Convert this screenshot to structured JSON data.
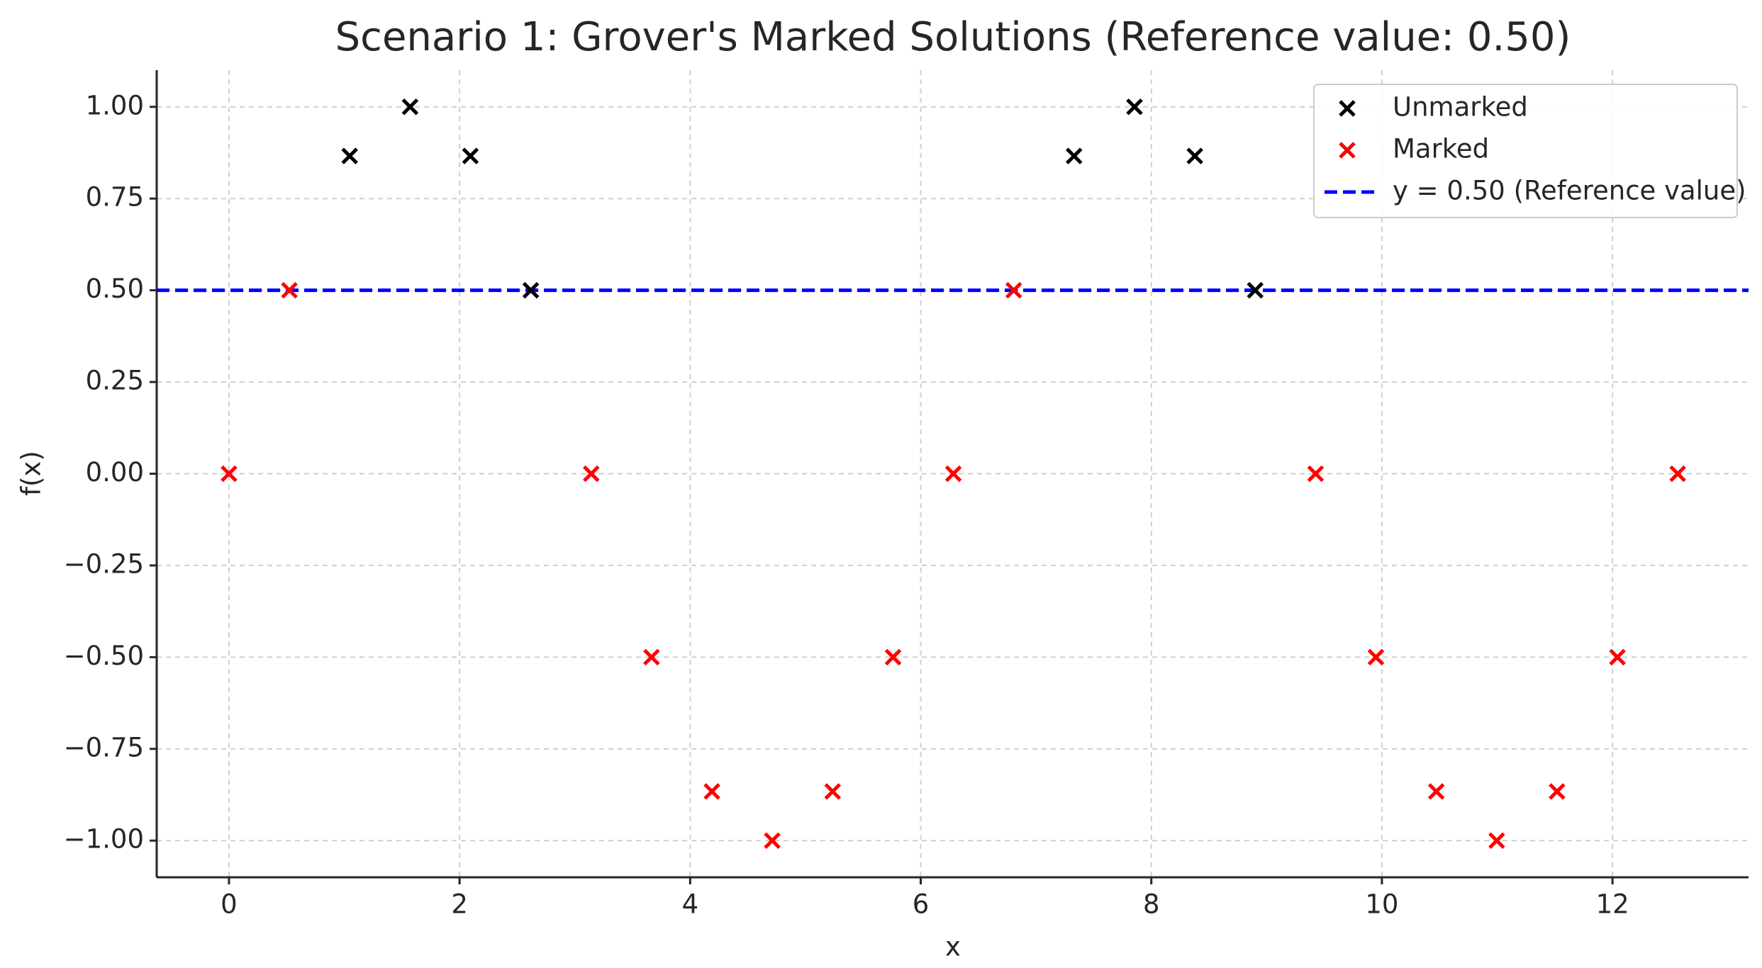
{
  "chart_data": {
    "type": "scatter",
    "title": "Scenario 1: Grover's Marked Solutions (Reference value: 0.50)",
    "x_label": "x",
    "y_label": "f(x)",
    "xlim": [
      -0.627,
      13.18
    ],
    "ylim": [
      -1.1,
      1.1
    ],
    "xticks": [
      0,
      2,
      4,
      6,
      8,
      10,
      12
    ],
    "yticks": [
      {
        "value": -1,
        "label": "−1.00"
      },
      {
        "value": -0.75,
        "label": "−0.75"
      },
      {
        "value": -0.5,
        "label": "−0.50"
      },
      {
        "value": -0.25,
        "label": "−0.25"
      },
      {
        "value": 0,
        "label": "0.00"
      },
      {
        "value": 0.25,
        "label": "0.25"
      },
      {
        "value": 0.5,
        "label": "0.50"
      },
      {
        "value": 0.75,
        "label": "0.75"
      },
      {
        "value": 1,
        "label": "1.00"
      }
    ],
    "grid": true,
    "legend": "upper right",
    "series": [
      {
        "name": "Unmarked",
        "color": "#000000",
        "x": [
          1.047,
          1.571,
          2.094,
          2.618,
          7.33,
          7.854,
          8.378,
          8.901
        ],
        "values": [
          0.866,
          1,
          0.866,
          0.5,
          0.866,
          1,
          0.866,
          0.5
        ]
      },
      {
        "name": "Marked",
        "color": "#ff0000",
        "x": [
          0,
          0.524,
          3.142,
          3.665,
          4.189,
          4.712,
          5.236,
          5.76,
          6.283,
          6.807,
          9.425,
          9.948,
          10.472,
          10.996,
          11.519,
          12.043,
          12.566
        ],
        "values": [
          0,
          0.5,
          0,
          -0.5,
          -0.866,
          -1,
          -0.866,
          -0.5,
          0,
          0.5,
          0,
          -0.5,
          -0.866,
          -1,
          -0.866,
          -0.5,
          0
        ]
      }
    ],
    "reference_line": {
      "value": 0.5,
      "label": "y = 0.50 (Reference value)",
      "color": "#0000ff"
    }
  }
}
